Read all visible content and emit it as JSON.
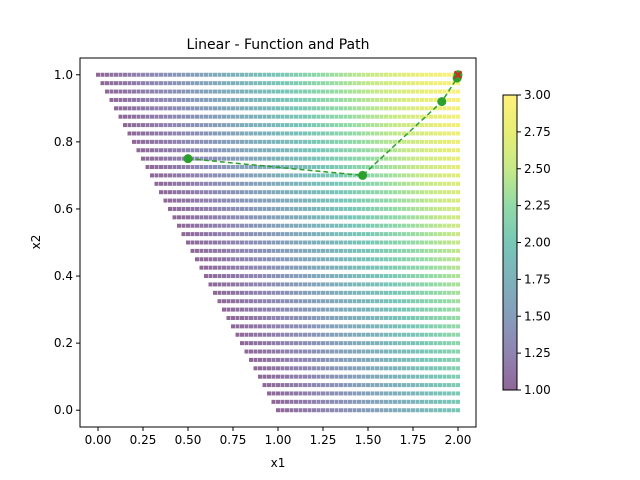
{
  "chart_data": {
    "type": "scatter",
    "title": "Linear - Function and Path",
    "xlabel": "x1",
    "ylabel": "x2",
    "xlim": [
      -0.1,
      2.1
    ],
    "ylim": [
      -0.05,
      1.05
    ],
    "x_ticks": [
      "0.00",
      "0.25",
      "0.50",
      "0.75",
      "1.00",
      "1.25",
      "1.50",
      "1.75",
      "2.00"
    ],
    "y_ticks": [
      "0.0",
      "0.2",
      "0.4",
      "0.6",
      "0.8",
      "1.0"
    ],
    "grid": false,
    "function_field": {
      "description_values": "f(x1,x2) = x1 + x2 over region x1 >= 1 - x2, 0<=x1<=2, 0<=x2<=1",
      "x1_range": [
        0,
        2
      ],
      "x2_range": [
        0,
        1
      ],
      "grid_resolution": 0.025,
      "colormap": "viridis",
      "alpha": 0.6
    },
    "colorbar": {
      "range": [
        1.0,
        3.0
      ],
      "ticks": [
        "1.00",
        "1.25",
        "1.50",
        "1.75",
        "2.00",
        "2.25",
        "2.50",
        "2.75",
        "3.00"
      ]
    },
    "path": {
      "color": "#2ca02c",
      "line_style": "dashed",
      "points": [
        {
          "x1": 0.5,
          "x2": 0.75
        },
        {
          "x1": 1.47,
          "x2": 0.7
        },
        {
          "x1": 1.91,
          "x2": 0.92
        },
        {
          "x1": 1.995,
          "x2": 0.99
        },
        {
          "x1": 2.0,
          "x2": 1.0
        }
      ]
    },
    "optimum": {
      "x1": 2.0,
      "x2": 1.0,
      "color": "#d62728",
      "marker": "x"
    }
  }
}
